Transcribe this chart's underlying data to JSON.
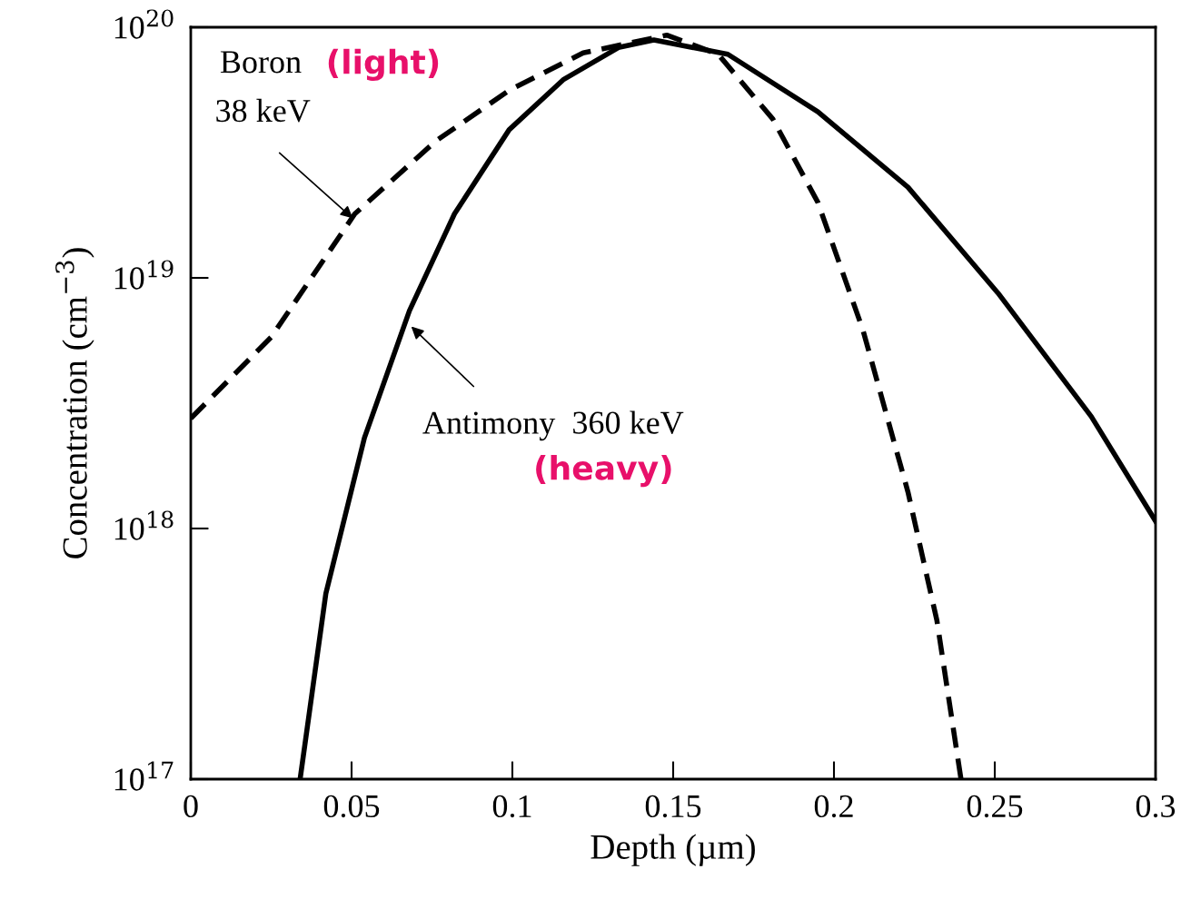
{
  "chart_data": {
    "type": "line",
    "xlabel": "Depth (µm)",
    "ylabel": "Concentration (cm$^{−3}$)",
    "log": "y",
    "xlim": [
      0,
      0.3
    ],
    "xticks": [
      0,
      0.05,
      0.1,
      0.15,
      0.2,
      0.25,
      0.3
    ],
    "ylim": [
      1e+17,
      1e+20
    ],
    "yticks": [
      {
        "value": 1e+17,
        "label": "10$^{17}$"
      },
      {
        "value": 1e+18,
        "label": "10$^{18}$"
      },
      {
        "value": 1e+19,
        "label": "10$^{19}$"
      },
      {
        "value": 1e+20,
        "label": "10$^{20}$"
      }
    ],
    "grid": false,
    "legend": false,
    "series": [
      {
        "color": "#000000",
        "line_style": "dashed",
        "x": [
          0,
          0.025,
          0.051,
          0.076,
          0.099,
          0.122,
          0.148,
          0.164,
          0.181,
          0.195,
          0.209,
          0.223,
          0.232,
          0.2395
        ],
        "values": [
          2.75e+18,
          5.8e+18,
          1.8e+19,
          3.5e+19,
          5.6e+19,
          7.9e+19,
          9.3e+19,
          7.8e+19,
          4.3e+19,
          2e+19,
          6.2e+18,
          1.4e+18,
          4.3e+17,
          1e+17
        ]
      },
      {
        "color": "#000000",
        "line_style": "solid",
        "x": [
          0.034,
          0.042,
          0.054,
          0.068,
          0.082,
          0.099,
          0.116,
          0.133,
          0.144,
          0.167,
          0.195,
          0.223,
          0.251,
          0.28,
          0.3
        ],
        "values": [
          1e+17,
          5.5e+17,
          2.3e+18,
          7.4e+18,
          1.8e+19,
          3.9e+19,
          6.2e+19,
          8.3e+19,
          8.9e+19,
          7.8e+19,
          4.6e+19,
          2.3e+19,
          8.7e+18,
          2.8e+18,
          1.07e+18
        ]
      }
    ],
    "annotations": [
      "Boron",
      "(light)",
      {
        "text": "38 keV",
        "x": 0.051,
        "y": 1.7e+19
      },
      {
        "text": "Antimony  360 keV",
        "x": 0.068,
        "y": 6.5e+18
      },
      "(heavy)"
    ]
  }
}
